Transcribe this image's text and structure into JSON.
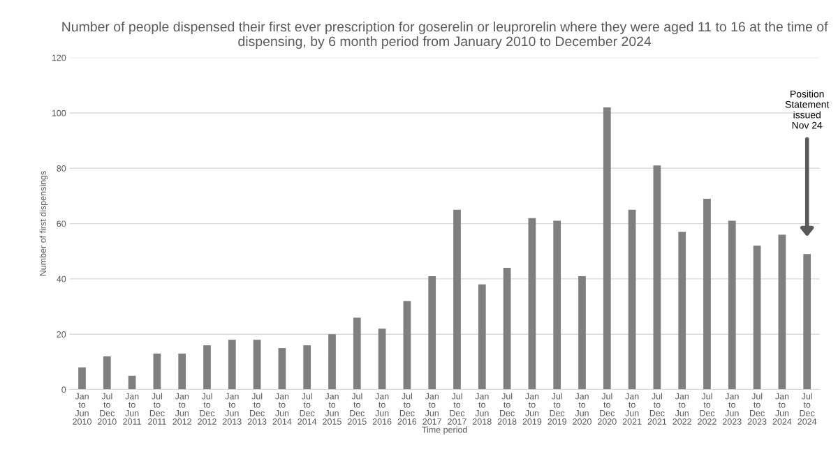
{
  "chart_data": {
    "type": "bar",
    "title": "Number of people dispensed their first ever prescription for goserelin or leuprorelin where they were aged 11 to 16 at the time of dispensing, by 6 month period from January 2010 to December 2024",
    "xlabel": "Time period",
    "ylabel": "Number of first dispensings",
    "categories": [
      "Jan to Jun 2010",
      "Jul to Dec 2010",
      "Jan to Jun 2011",
      "Jul to Dec 2011",
      "Jan to Jun 2012",
      "Jul to Dec 2012",
      "Jan to Jun 2013",
      "Jul to Dec 2013",
      "Jan to Jun 2014",
      "Jul to Dec 2014",
      "Jan to Jun 2015",
      "Jul to Dec 2015",
      "Jan to Jun 2016",
      "Jul to Dec 2016",
      "Jan to Jun 2017",
      "Jul to Dec 2017",
      "Jan to Jun 2018",
      "Jul to Dec 2018",
      "Jan to Jun 2019",
      "Jul to Dec 2019",
      "Jan to Jun 2020",
      "Jul to Dec 2020",
      "Jan to Jun 2021",
      "Jul to Dec 2021",
      "Jan to Jun 2022",
      "Jul to Dec 2022",
      "Jan to Jun 2023",
      "Jul to Dec 2023",
      "Jan to Jun 2024",
      "Jul to Dec 2024"
    ],
    "values": [
      8,
      12,
      5,
      13,
      13,
      16,
      18,
      18,
      15,
      16,
      20,
      26,
      22,
      32,
      41,
      65,
      38,
      44,
      62,
      61,
      41,
      102,
      65,
      81,
      57,
      69,
      61,
      52,
      56,
      49
    ],
    "color": "#7f7f7f",
    "ylim": [
      0,
      120
    ],
    "yticks": [
      0,
      20,
      40,
      60,
      80,
      100,
      120
    ],
    "grid": "y",
    "annotations": [
      "Position\nStatement\nissued\nNov 24"
    ]
  }
}
